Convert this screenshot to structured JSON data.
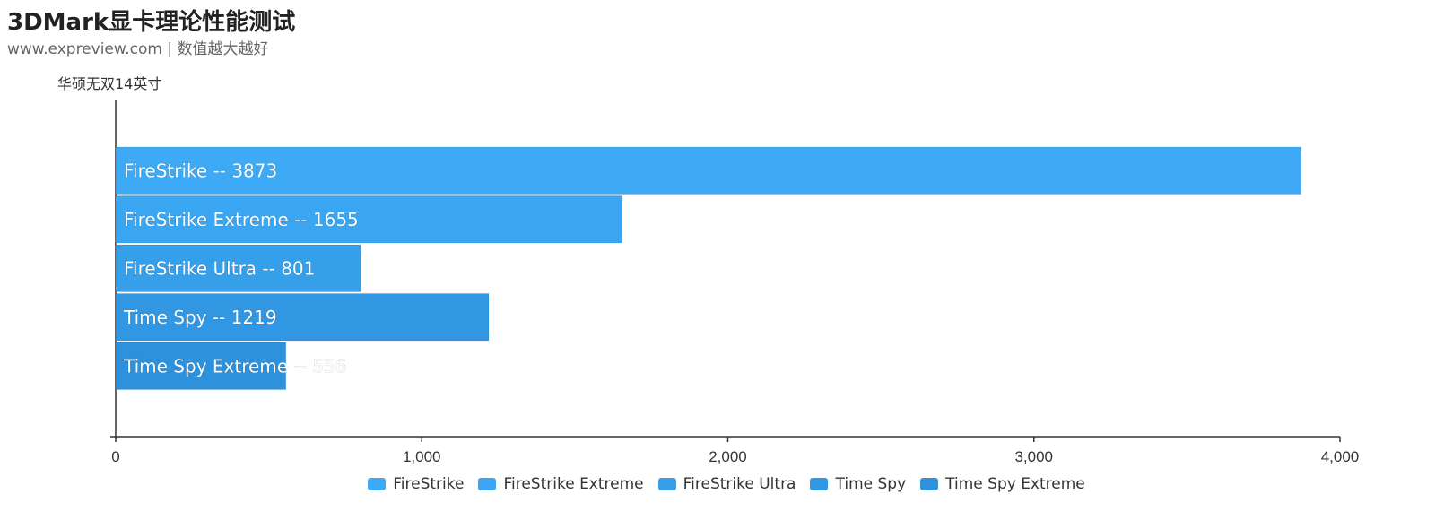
{
  "header": {
    "title": "3DMark显卡理论性能测试",
    "subtitle": "www.expreview.com | 数值越大越好"
  },
  "chart_data": {
    "type": "bar",
    "orientation": "horizontal",
    "ylabel": "华硕无双14英寸",
    "xlim": [
      0,
      4000
    ],
    "xticks": [
      0,
      1000,
      2000,
      3000,
      4000
    ],
    "xtick_labels": [
      "0",
      "1,000",
      "2,000",
      "3,000",
      "4,000"
    ],
    "grid": false,
    "legend_position": "bottom",
    "series": [
      {
        "name": "FireStrike",
        "value": 3873,
        "label": "FireStrike  --  3873",
        "color": "#3eaaf5"
      },
      {
        "name": "FireStrike Extreme",
        "value": 1655,
        "label": "FireStrike Extreme  --  1655",
        "color": "#3aa5f0"
      },
      {
        "name": "FireStrike Ultra",
        "value": 801,
        "label": "FireStrike Ultra  --  801",
        "color": "#369fea"
      },
      {
        "name": "Time Spy",
        "value": 1219,
        "label": "Time Spy  --  1219",
        "color": "#3197e2"
      },
      {
        "name": "Time Spy Extreme",
        "value": 556,
        "label": "Time Spy Extreme  --  556",
        "color": "#2e91dc"
      }
    ]
  }
}
